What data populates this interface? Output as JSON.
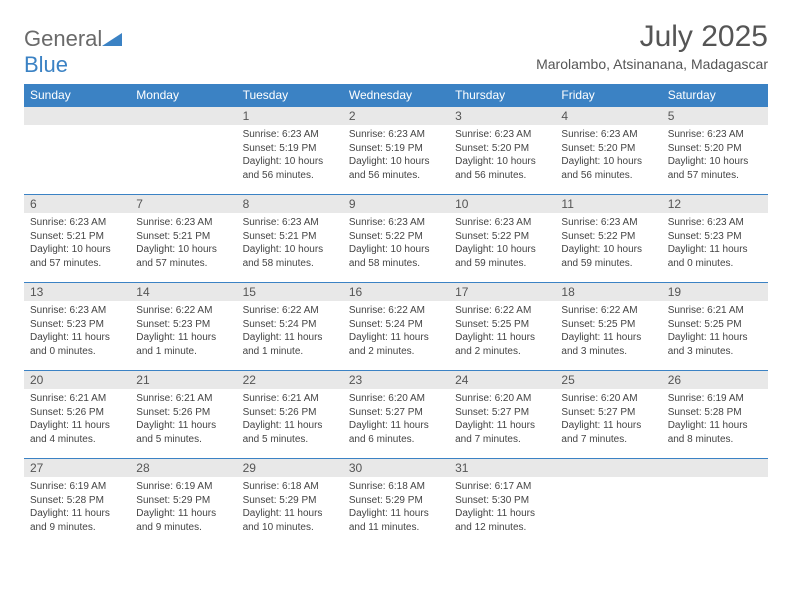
{
  "logo": {
    "text1": "General",
    "text2": "Blue"
  },
  "title": "July 2025",
  "location": "Marolambo, Atsinanana, Madagascar",
  "colors": {
    "header_bg": "#3b82c4",
    "header_text": "#ffffff",
    "daynum_bg": "#e8e8e8",
    "border": "#3b82c4",
    "logo_gray": "#6a6a6a",
    "logo_blue": "#3b82c4"
  },
  "weekdays": [
    "Sunday",
    "Monday",
    "Tuesday",
    "Wednesday",
    "Thursday",
    "Friday",
    "Saturday"
  ],
  "weeks": [
    [
      null,
      null,
      {
        "n": "1",
        "sr": "6:23 AM",
        "ss": "5:19 PM",
        "dl": "10 hours and 56 minutes."
      },
      {
        "n": "2",
        "sr": "6:23 AM",
        "ss": "5:19 PM",
        "dl": "10 hours and 56 minutes."
      },
      {
        "n": "3",
        "sr": "6:23 AM",
        "ss": "5:20 PM",
        "dl": "10 hours and 56 minutes."
      },
      {
        "n": "4",
        "sr": "6:23 AM",
        "ss": "5:20 PM",
        "dl": "10 hours and 56 minutes."
      },
      {
        "n": "5",
        "sr": "6:23 AM",
        "ss": "5:20 PM",
        "dl": "10 hours and 57 minutes."
      }
    ],
    [
      {
        "n": "6",
        "sr": "6:23 AM",
        "ss": "5:21 PM",
        "dl": "10 hours and 57 minutes."
      },
      {
        "n": "7",
        "sr": "6:23 AM",
        "ss": "5:21 PM",
        "dl": "10 hours and 57 minutes."
      },
      {
        "n": "8",
        "sr": "6:23 AM",
        "ss": "5:21 PM",
        "dl": "10 hours and 58 minutes."
      },
      {
        "n": "9",
        "sr": "6:23 AM",
        "ss": "5:22 PM",
        "dl": "10 hours and 58 minutes."
      },
      {
        "n": "10",
        "sr": "6:23 AM",
        "ss": "5:22 PM",
        "dl": "10 hours and 59 minutes."
      },
      {
        "n": "11",
        "sr": "6:23 AM",
        "ss": "5:22 PM",
        "dl": "10 hours and 59 minutes."
      },
      {
        "n": "12",
        "sr": "6:23 AM",
        "ss": "5:23 PM",
        "dl": "11 hours and 0 minutes."
      }
    ],
    [
      {
        "n": "13",
        "sr": "6:23 AM",
        "ss": "5:23 PM",
        "dl": "11 hours and 0 minutes."
      },
      {
        "n": "14",
        "sr": "6:22 AM",
        "ss": "5:23 PM",
        "dl": "11 hours and 1 minute."
      },
      {
        "n": "15",
        "sr": "6:22 AM",
        "ss": "5:24 PM",
        "dl": "11 hours and 1 minute."
      },
      {
        "n": "16",
        "sr": "6:22 AM",
        "ss": "5:24 PM",
        "dl": "11 hours and 2 minutes."
      },
      {
        "n": "17",
        "sr": "6:22 AM",
        "ss": "5:25 PM",
        "dl": "11 hours and 2 minutes."
      },
      {
        "n": "18",
        "sr": "6:22 AM",
        "ss": "5:25 PM",
        "dl": "11 hours and 3 minutes."
      },
      {
        "n": "19",
        "sr": "6:21 AM",
        "ss": "5:25 PM",
        "dl": "11 hours and 3 minutes."
      }
    ],
    [
      {
        "n": "20",
        "sr": "6:21 AM",
        "ss": "5:26 PM",
        "dl": "11 hours and 4 minutes."
      },
      {
        "n": "21",
        "sr": "6:21 AM",
        "ss": "5:26 PM",
        "dl": "11 hours and 5 minutes."
      },
      {
        "n": "22",
        "sr": "6:21 AM",
        "ss": "5:26 PM",
        "dl": "11 hours and 5 minutes."
      },
      {
        "n": "23",
        "sr": "6:20 AM",
        "ss": "5:27 PM",
        "dl": "11 hours and 6 minutes."
      },
      {
        "n": "24",
        "sr": "6:20 AM",
        "ss": "5:27 PM",
        "dl": "11 hours and 7 minutes."
      },
      {
        "n": "25",
        "sr": "6:20 AM",
        "ss": "5:27 PM",
        "dl": "11 hours and 7 minutes."
      },
      {
        "n": "26",
        "sr": "6:19 AM",
        "ss": "5:28 PM",
        "dl": "11 hours and 8 minutes."
      }
    ],
    [
      {
        "n": "27",
        "sr": "6:19 AM",
        "ss": "5:28 PM",
        "dl": "11 hours and 9 minutes."
      },
      {
        "n": "28",
        "sr": "6:19 AM",
        "ss": "5:29 PM",
        "dl": "11 hours and 9 minutes."
      },
      {
        "n": "29",
        "sr": "6:18 AM",
        "ss": "5:29 PM",
        "dl": "11 hours and 10 minutes."
      },
      {
        "n": "30",
        "sr": "6:18 AM",
        "ss": "5:29 PM",
        "dl": "11 hours and 11 minutes."
      },
      {
        "n": "31",
        "sr": "6:17 AM",
        "ss": "5:30 PM",
        "dl": "11 hours and 12 minutes."
      },
      null,
      null
    ]
  ],
  "labels": {
    "sunrise": "Sunrise:",
    "sunset": "Sunset:",
    "daylight": "Daylight:"
  }
}
